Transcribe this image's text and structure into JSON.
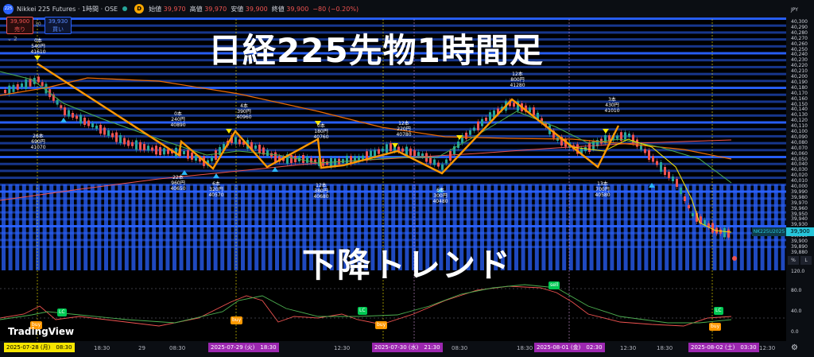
{
  "topbar": {
    "logo": "225",
    "symbol": "Nikkei 225 Futures · 1時間 · OSE",
    "dbadge": "D",
    "open_label": "始値",
    "open": "39,970",
    "high_label": "高値",
    "high": "39,970",
    "low_label": "安値",
    "low": "39,900",
    "close_label": "終値",
    "close": "39,900",
    "change": "−80 (−0.20%)"
  },
  "trade": {
    "sell_price": "39,900",
    "sell_label": "売り",
    "spread": "30",
    "buy_price": "39,930",
    "buy_label": "買い"
  },
  "indicator_count": "2",
  "title": "日経225先物1時間足",
  "subtitle": "下降トレンド",
  "currency": "JPY",
  "price_labels": [
    "40,300",
    "40,290",
    "40,280",
    "40,270",
    "40,260",
    "40,250",
    "40,240",
    "40,230",
    "40,220",
    "40,210",
    "40,200",
    "40,190",
    "40,180",
    "40,170",
    "40,160",
    "40,150",
    "40,140",
    "40,130",
    "40,120",
    "40,110",
    "40,100",
    "40,090",
    "40,080",
    "40,070",
    "40,060",
    "40,050",
    "40,040",
    "40,030",
    "40,020",
    "40,010",
    "40,000",
    "39,990",
    "39,980",
    "39,970",
    "39,960",
    "39,950",
    "39,940",
    "39,930",
    "39,920",
    "39,910",
    "39,900",
    "39,890",
    "39,880"
  ],
  "current_price": "39,900",
  "current_symbol": "NK225U2025",
  "axis_buttons": [
    "%",
    "L"
  ],
  "osc_labels": [
    "120.0",
    "80.0",
    "40.0",
    "0.0"
  ],
  "time_labels": [
    {
      "text": "2025-07-28 (月)　08:30",
      "hi": "yel"
    },
    {
      "text": "18:30"
    },
    {
      "text": "29"
    },
    {
      "text": "08:30"
    },
    {
      "text": "2025-07-29 (火)　18:30",
      "hi": "pur"
    },
    {
      "text": "12:30"
    },
    {
      "text": "2025-07-30 (水)　21:30",
      "hi": "pur"
    },
    {
      "text": "08:30"
    },
    {
      "text": "18:30"
    },
    {
      "text": "2025-08-01 (金)　02:30",
      "hi": "pur"
    },
    {
      "text": "12:30"
    },
    {
      "text": "18:30"
    },
    {
      "text": "2025-08-02 (土)　03:30",
      "hi": "pur"
    },
    {
      "text": "12:30"
    }
  ],
  "zigzag_labels": [
    {
      "lines": [
        "0本",
        "540円",
        "41610"
      ]
    },
    {
      "lines": [
        "26本",
        "690円",
        "41070"
      ]
    },
    {
      "lines": [
        "0本",
        "240円",
        "40890"
      ]
    },
    {
      "lines": [
        "22本",
        "960円",
        "40650"
      ]
    },
    {
      "lines": [
        "4本",
        "390円",
        "40960"
      ]
    },
    {
      "lines": [
        "6本",
        "320円",
        "40570"
      ]
    },
    {
      "lines": [
        "0本",
        "180円",
        "40760"
      ]
    },
    {
      "lines": [
        "12本",
        "380円",
        "40680"
      ]
    },
    {
      "lines": [
        "12本",
        "220円",
        "40780"
      ]
    },
    {
      "lines": [
        "6本",
        "300円",
        "40480"
      ]
    },
    {
      "lines": [
        "12本",
        "800円",
        "41280"
      ]
    },
    {
      "lines": [
        "3本",
        "430円",
        "41010"
      ]
    },
    {
      "lines": [
        "13本",
        "700円",
        "40580"
      ]
    }
  ],
  "signals": [
    "LC",
    "buy",
    "buy",
    "LC",
    "sell",
    "buy",
    "LC",
    "buy",
    "LC"
  ],
  "brand": "TradingView",
  "colors": {
    "bg": "#000000",
    "band": "#2962ff",
    "zigzag": "#ff9800",
    "ma_green": "#4caf50",
    "ma_orange": "#ef6c00",
    "ma_red": "#ef5350",
    "ma_yellow": "#f7e600"
  }
}
